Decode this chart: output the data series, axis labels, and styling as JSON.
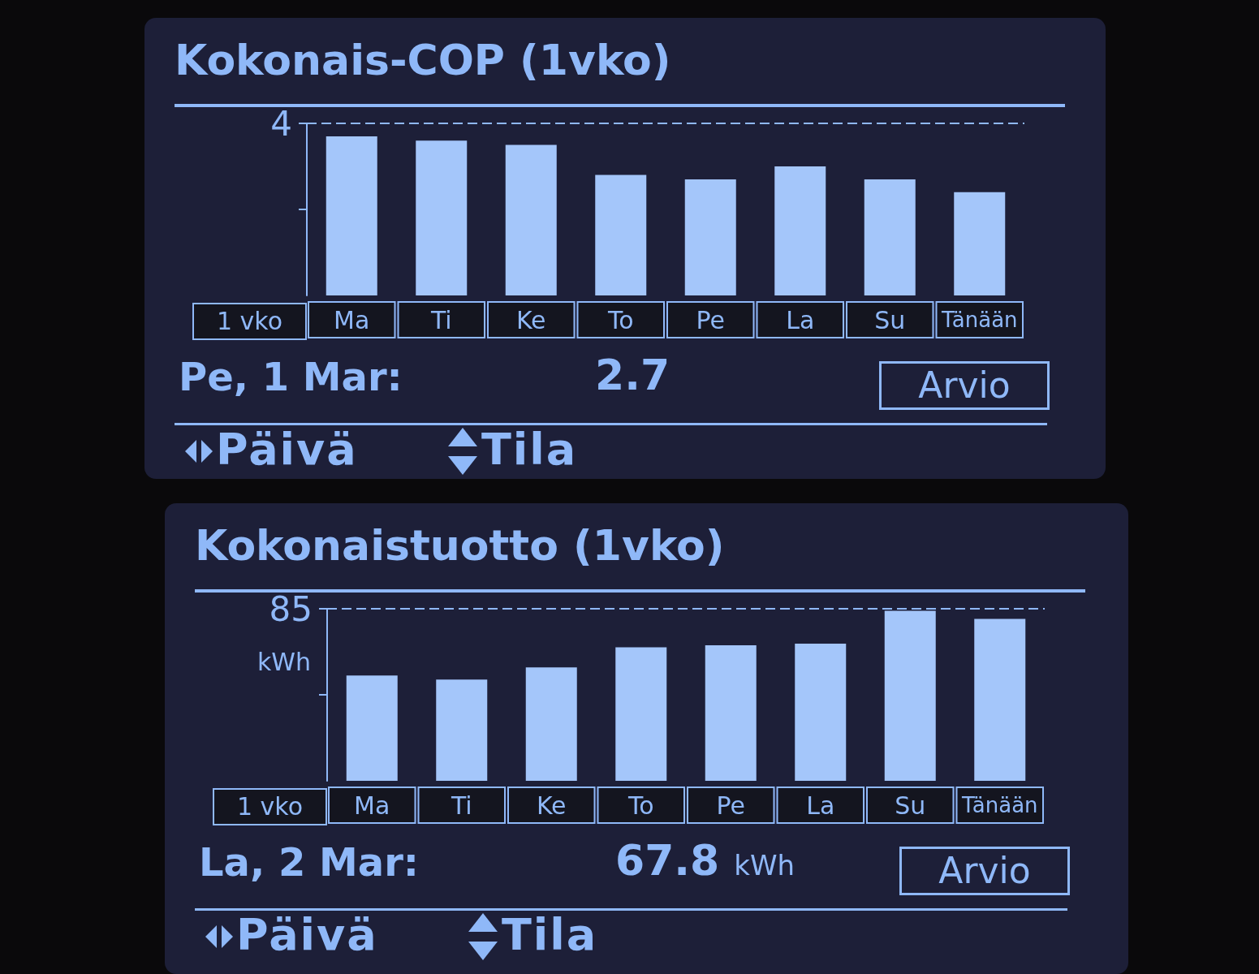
{
  "chart_data": [
    {
      "type": "bar",
      "title": "Kokonais-COP (1vko)",
      "categories": [
        "Ma",
        "Ti",
        "Ke",
        "To",
        "Pe",
        "La",
        "Su",
        "Tänään"
      ],
      "values": [
        3.7,
        3.6,
        3.5,
        2.8,
        2.7,
        3.0,
        2.7,
        2.4
      ],
      "color": "#a4c6fa",
      "ylim": [
        0,
        4
      ],
      "yticks": [
        {
          "value": 2,
          "label": null
        },
        4
      ],
      "ref_lines": [
        {
          "axis": "y",
          "value": 4,
          "line_style": "dashed"
        }
      ],
      "annotations": [
        "1 vko",
        "Pe, 1 Mar:",
        "2.7",
        "Arvio",
        "Päivä",
        "Tila"
      ]
    },
    {
      "type": "bar",
      "title": "Kokonaistuotto (1vko)",
      "ylabel": "kWh",
      "categories": [
        "Ma",
        "Ti",
        "Ke",
        "To",
        "Pe",
        "La",
        "Su",
        "Tänään"
      ],
      "values": [
        52,
        50,
        56,
        66,
        67,
        67.8,
        84,
        80
      ],
      "color": "#a4c6fa",
      "ylim": [
        0,
        85
      ],
      "yticks": [
        {
          "value": 42.5,
          "label": null
        },
        85
      ],
      "ref_lines": [
        {
          "axis": "y",
          "value": 85,
          "line_style": "dashed"
        }
      ],
      "annotations": [
        "1 vko",
        "La, 2 Mar:",
        "67.8",
        "kWh",
        "Arvio",
        "Päivä",
        "Tila"
      ]
    }
  ]
}
